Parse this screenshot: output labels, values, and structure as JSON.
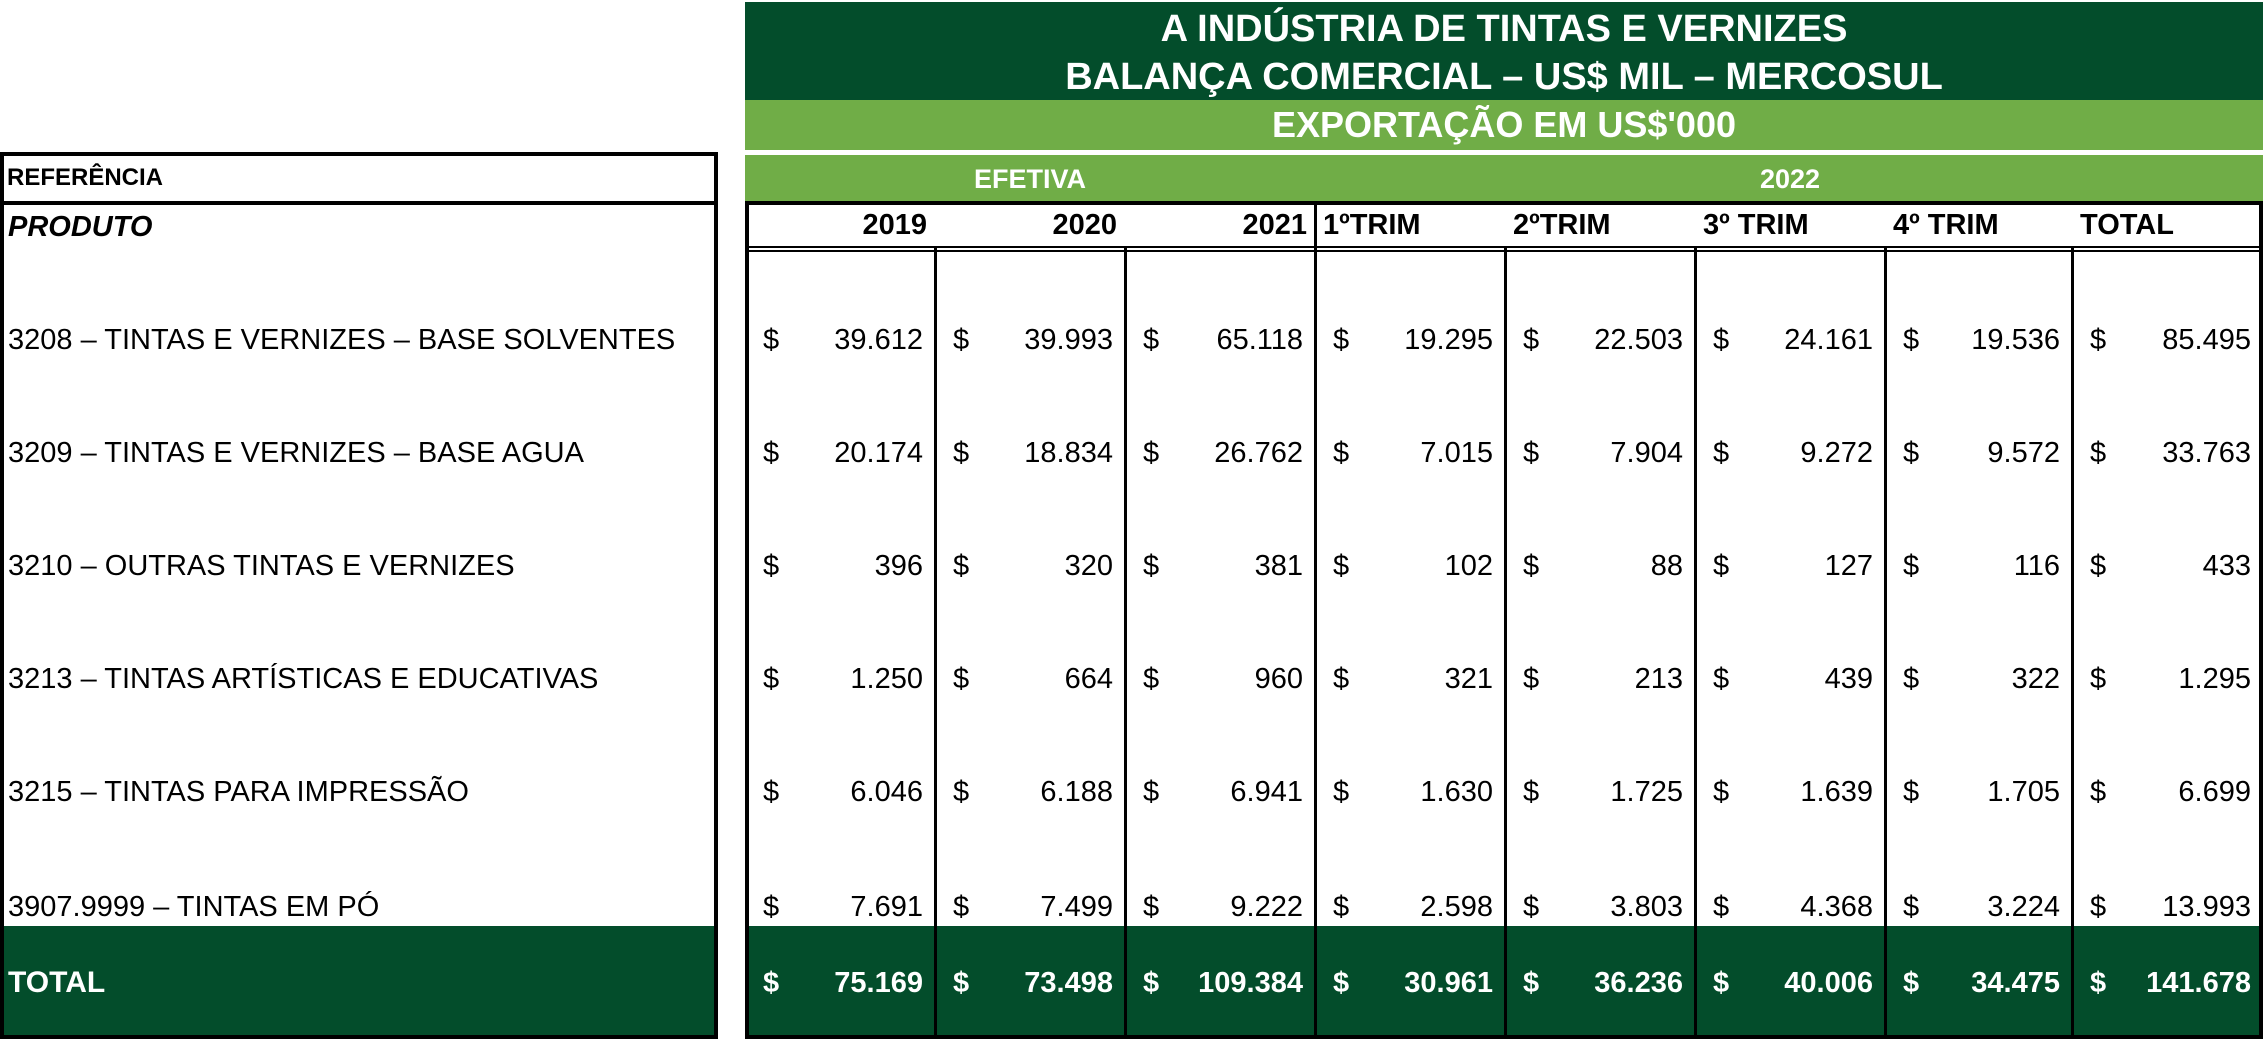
{
  "header": {
    "title_line1": "A INDÚSTRIA DE TINTAS E VERNIZES",
    "title_line2": "BALANÇA COMERCIAL – US$ MIL – MERCOSUL",
    "subtitle": "EXPORTAÇÃO EM US$'000",
    "group_efetiva": "EFETIVA",
    "group_2022": "2022"
  },
  "left": {
    "reference_label": "REFERÊNCIA",
    "product_label": "PRODUTO",
    "total_label": "TOTAL"
  },
  "columns": [
    "2019",
    "2020",
    "2021",
    "1ºTRIM",
    "2ºTRIM",
    "3º TRIM",
    "4º TRIM",
    "TOTAL"
  ],
  "currency_symbol": "$",
  "rows": [
    {
      "product": "3208 – TINTAS E VERNIZES – BASE SOLVENTES",
      "values": [
        "39.612",
        "39.993",
        "65.118",
        "19.295",
        "22.503",
        "24.161",
        "19.536",
        "85.495"
      ]
    },
    {
      "product": "3209 – TINTAS E VERNIZES – BASE AGUA",
      "values": [
        "20.174",
        "18.834",
        "26.762",
        "7.015",
        "7.904",
        "9.272",
        "9.572",
        "33.763"
      ]
    },
    {
      "product": "3210 – OUTRAS TINTAS E VERNIZES",
      "values": [
        "396",
        "320",
        "381",
        "102",
        "88",
        "127",
        "116",
        "433"
      ]
    },
    {
      "product": "3213 – TINTAS ARTÍSTICAS E EDUCATIVAS",
      "values": [
        "1.250",
        "664",
        "960",
        "321",
        "213",
        "439",
        "322",
        "1.295"
      ]
    },
    {
      "product": "3215 – TINTAS PARA IMPRESSÃO",
      "values": [
        "6.046",
        "6.188",
        "6.941",
        "1.630",
        "1.725",
        "1.639",
        "1.705",
        "6.699"
      ]
    },
    {
      "product": "3907.9999 – TINTAS EM PÓ",
      "values": [
        "7.691",
        "7.499",
        "9.222",
        "2.598",
        "3.803",
        "4.368",
        "3.224",
        "13.993"
      ]
    }
  ],
  "totals": [
    "75.169",
    "73.498",
    "109.384",
    "30.961",
    "36.236",
    "40.006",
    "34.475",
    "141.678"
  ],
  "colors": {
    "dark_green": "#034d2b",
    "light_green": "#70ad47"
  }
}
